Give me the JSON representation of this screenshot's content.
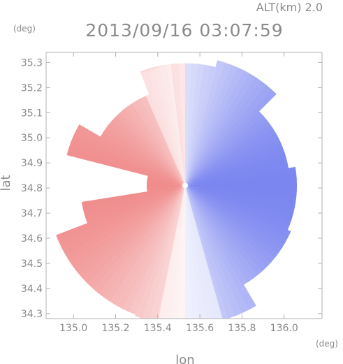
{
  "header": {
    "altitude_label": "ALT(km) 2.0",
    "timestamp": "2013/09/16 03:07:59"
  },
  "chart_data": {
    "type": "heatmap",
    "title": "2013/09/16 03:07:59",
    "xlabel": "lon",
    "ylabel": "lat",
    "xunit": "(deg)",
    "yunit": "(deg)",
    "xlim": [
      134.87,
      136.18
    ],
    "ylim": [
      34.28,
      35.34
    ],
    "xticks": [
      135.0,
      135.2,
      135.4,
      135.6,
      135.8,
      136.0
    ],
    "xtick_labels": [
      "135.0",
      "135.2",
      "135.4",
      "135.6",
      "135.8",
      "136.0"
    ],
    "yticks": [
      34.3,
      34.4,
      34.5,
      34.6,
      34.7,
      34.8,
      34.9,
      35.0,
      35.1,
      35.2,
      35.3
    ],
    "ytick_labels": [
      "34.3",
      "34.4",
      "34.5",
      "34.6",
      "34.7",
      "34.8",
      "34.9",
      "35.0",
      "35.1",
      "35.2",
      "35.3"
    ],
    "radar_center": {
      "lon": 135.53,
      "lat": 34.81
    },
    "colors": {
      "approaching": "#7b86f0",
      "receding": "#f08c8c",
      "neutral": "#ffffff"
    },
    "grid": false,
    "colorbar": false
  }
}
